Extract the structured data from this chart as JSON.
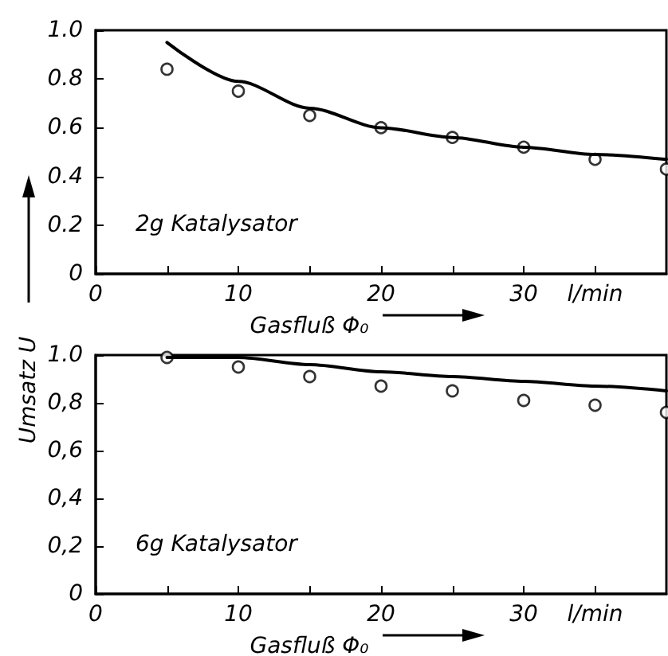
{
  "chart_data": [
    {
      "type": "scatter",
      "xlabel": "Gasfluß Φ₀",
      "annotations": [
        "2g Katalysator"
      ],
      "xlim": [
        0,
        40
      ],
      "xticks": [
        0,
        {
          "value": 5,
          "label": null
        },
        10,
        {
          "value": 15,
          "label": null
        },
        20,
        {
          "value": 25,
          "label": null
        },
        30,
        {
          "value": 35,
          "label": "l/min"
        }
      ],
      "ylim": [
        0,
        1.0
      ],
      "yticks": [
        0,
        {
          "value": 0.2,
          "label": "0.2"
        },
        {
          "value": 0.4,
          "label": "0.4"
        },
        {
          "value": 0.6,
          "label": "0.6"
        },
        {
          "value": 0.8,
          "label": "0.8"
        },
        {
          "value": 1.0,
          "label": "1.0"
        }
      ],
      "grid": false,
      "series": [
        {
          "marker": "circle",
          "color": "#000000",
          "x": [
            5,
            10,
            15,
            20,
            25,
            30,
            35,
            40
          ],
          "values": [
            0.84,
            0.75,
            0.65,
            0.6,
            0.56,
            0.52,
            0.47,
            0.43
          ]
        },
        {
          "type": "line",
          "marker": "none",
          "line_style": "solid",
          "color": "#000000",
          "x": [
            5,
            10,
            15,
            20,
            25,
            30,
            35,
            40
          ],
          "values": [
            0.95,
            0.79,
            0.68,
            0.6,
            0.56,
            0.52,
            0.49,
            0.47
          ]
        }
      ]
    },
    {
      "type": "scatter",
      "xlabel": "Gasfluß Φ₀",
      "ylabel": "Umsatz U",
      "annotations": [
        "6g Katalysator"
      ],
      "xlim": [
        0,
        40
      ],
      "xticks": [
        0,
        {
          "value": 5,
          "label": null
        },
        10,
        {
          "value": 15,
          "label": null
        },
        20,
        {
          "value": 25,
          "label": null
        },
        30,
        {
          "value": 35,
          "label": "l/min"
        }
      ],
      "ylim": [
        0,
        1.0
      ],
      "yticks": [
        0,
        {
          "value": 0.2,
          "label": "0,2"
        },
        {
          "value": 0.4,
          "label": "0,4"
        },
        {
          "value": 0.6,
          "label": "0,6"
        },
        {
          "value": 0.8,
          "label": "0,8"
        },
        {
          "value": 1.0,
          "label": "1.0"
        }
      ],
      "grid": false,
      "series": [
        {
          "marker": "circle",
          "color": "#000000",
          "x": [
            5,
            10,
            15,
            20,
            25,
            30,
            35,
            40
          ],
          "values": [
            0.99,
            0.95,
            0.91,
            0.87,
            0.85,
            0.81,
            0.79,
            0.76
          ]
        },
        {
          "type": "line",
          "marker": "none",
          "line_style": "solid",
          "color": "#000000",
          "x": [
            5,
            10,
            15,
            20,
            25,
            30,
            35,
            40
          ],
          "values": [
            0.99,
            0.99,
            0.96,
            0.93,
            0.91,
            0.89,
            0.87,
            0.85
          ]
        }
      ]
    }
  ]
}
